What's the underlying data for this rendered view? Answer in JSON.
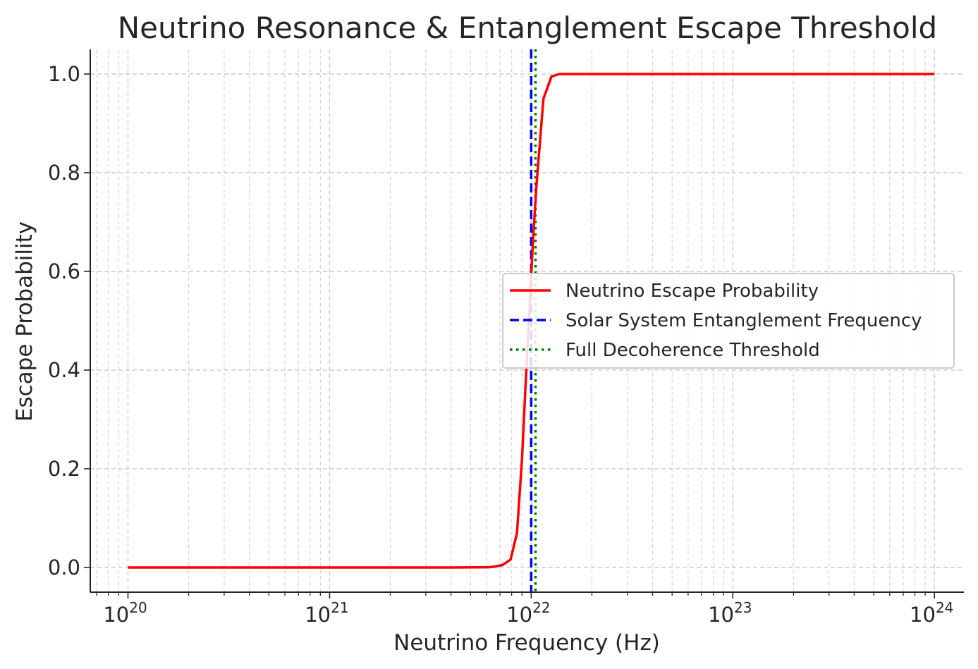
{
  "chart_data": {
    "type": "line",
    "title": "Neutrino Resonance & Entanglement Escape Threshold",
    "xlabel": "Neutrino Frequency (Hz)",
    "ylabel": "Escape Probability",
    "xscale": "log",
    "xlim": [
      6.5e+19,
      1.4e+24
    ],
    "ylim": [
      -0.05,
      1.05
    ],
    "grid": true,
    "legend_position": "center-right",
    "x_ticks": [
      {
        "base": "10",
        "exp": "20",
        "value": 1e+20
      },
      {
        "base": "10",
        "exp": "21",
        "value": 1e+21
      },
      {
        "base": "10",
        "exp": "22",
        "value": 1e+22
      },
      {
        "base": "10",
        "exp": "23",
        "value": 1e+23
      },
      {
        "base": "10",
        "exp": "24",
        "value": 1e+24
      }
    ],
    "y_ticks": [
      {
        "label": "0.0",
        "value": 0.0
      },
      {
        "label": "0.2",
        "value": 0.2
      },
      {
        "label": "0.4",
        "value": 0.4
      },
      {
        "label": "0.6",
        "value": 0.6
      },
      {
        "label": "0.8",
        "value": 0.8
      },
      {
        "label": "1.0",
        "value": 1.0
      }
    ],
    "series": [
      {
        "name": "Neutrino Escape Probability",
        "color": "#ff0000",
        "style": "solid",
        "points": [
          [
            1e+20,
            0.0
          ],
          [
            1e+21,
            0.0
          ],
          [
            4e+21,
            0.0
          ],
          [
            6.2e+21,
            0.0005
          ],
          [
            6.6e+21,
            0.002
          ],
          [
            7.2e+21,
            0.005
          ],
          [
            7.9e+21,
            0.016
          ],
          [
            8.5e+21,
            0.07
          ],
          [
            9e+21,
            0.22
          ],
          [
            9.4e+21,
            0.38
          ],
          [
            9.8e+21,
            0.52
          ],
          [
            1.02e+22,
            0.66
          ],
          [
            1.06e+22,
            0.77
          ],
          [
            1.15e+22,
            0.95
          ],
          [
            1.26e+22,
            0.995
          ],
          [
            1.38e+22,
            1.0
          ],
          [
            2e+22,
            1.0
          ],
          [
            1e+23,
            1.0
          ],
          [
            1e+24,
            1.0
          ]
        ]
      },
      {
        "name": "Solar System Entanglement Frequency",
        "color": "#0000ff",
        "style": "dashed",
        "x_value": 1e+22
      },
      {
        "name": "Full Decoherence Threshold",
        "color": "#008000",
        "style": "dotted",
        "x_value": 1.05e+22
      }
    ]
  }
}
